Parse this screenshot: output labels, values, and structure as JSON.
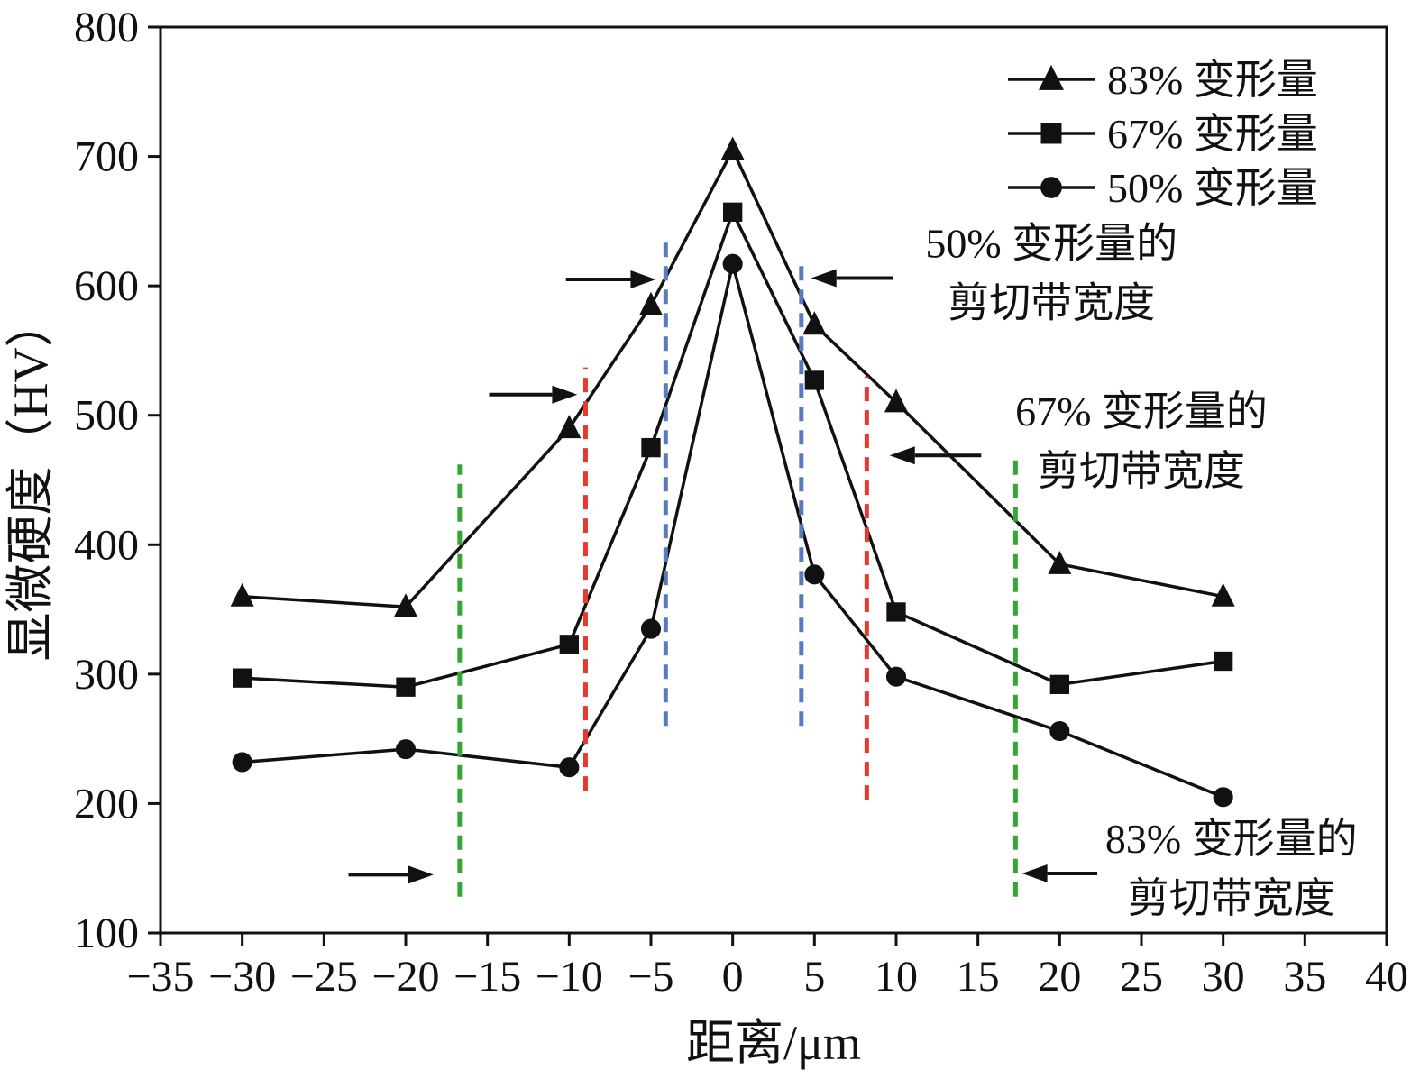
{
  "chart_data": {
    "type": "line",
    "title": "",
    "xlabel": "距离/μm",
    "ylabel": "显微硬度（HV）",
    "xlim": [
      -35,
      40
    ],
    "ylim": [
      100,
      800
    ],
    "xticks": [
      -35,
      -30,
      -25,
      -20,
      -15,
      -10,
      -5,
      0,
      5,
      10,
      15,
      20,
      25,
      30,
      35,
      40
    ],
    "yticks": [
      100,
      200,
      300,
      400,
      500,
      600,
      700,
      800
    ],
    "grid": false,
    "legend_position": "top-right",
    "background": "#ffffff",
    "axis_color": "#111111",
    "x": [
      -30,
      -20,
      -10,
      -5,
      0,
      5,
      10,
      20,
      30
    ],
    "series": [
      {
        "name": "83% 变形量",
        "marker": "triangle",
        "color": "#111111",
        "values": [
          360,
          352,
          490,
          585,
          705,
          570,
          510,
          385,
          360
        ]
      },
      {
        "name": "67% 变形量",
        "marker": "square",
        "color": "#111111",
        "values": [
          297,
          290,
          323,
          475,
          657,
          527,
          348,
          292,
          310
        ]
      },
      {
        "name": "50% 变形量",
        "marker": "circle",
        "color": "#111111",
        "values": [
          232,
          242,
          228,
          335,
          617,
          377,
          298,
          256,
          205
        ]
      }
    ],
    "shear_band_lines": [
      {
        "band": "83%-left",
        "x": -16.7,
        "y1": 128,
        "y2": 462,
        "color": "#35a535"
      },
      {
        "band": "83%-right",
        "x": 17.3,
        "y1": 128,
        "y2": 466,
        "color": "#35a535"
      },
      {
        "band": "67%-left",
        "x": -9.0,
        "y1": 210,
        "y2": 537,
        "color": "#e8392f"
      },
      {
        "band": "67%-right",
        "x": 8.2,
        "y1": 203,
        "y2": 530,
        "color": "#e8392f"
      },
      {
        "band": "50%-left",
        "x": -4.1,
        "y1": 260,
        "y2": 636,
        "color": "#5a7abf"
      },
      {
        "band": "50%-right",
        "x": 4.2,
        "y1": 260,
        "y2": 622,
        "color": "#5a7abf"
      }
    ],
    "arrows": [
      {
        "x1": -10.2,
        "y1": 605,
        "x2": -4.7,
        "y2": 605
      },
      {
        "x1": 9.8,
        "y1": 606,
        "x2": 4.8,
        "y2": 606
      },
      {
        "x1": -14.9,
        "y1": 516,
        "x2": -9.5,
        "y2": 516
      },
      {
        "x1": 15.2,
        "y1": 469,
        "x2": 9.6,
        "y2": 469
      },
      {
        "x1": -23.5,
        "y1": 145,
        "x2": -18.3,
        "y2": 145
      },
      {
        "x1": 22.3,
        "y1": 146,
        "x2": 17.7,
        "y2": 146
      }
    ],
    "annotations": [
      {
        "x": 19.5,
        "y": 622,
        "lines": [
          "50% 变形量的",
          "剪切带宽度"
        ]
      },
      {
        "x": 25.0,
        "y": 492,
        "lines": [
          "67% 变形量的",
          "剪切带宽度"
        ]
      },
      {
        "x": 30.5,
        "y": 162,
        "lines": [
          "83% 变形量的",
          "剪切带宽度"
        ]
      }
    ]
  }
}
